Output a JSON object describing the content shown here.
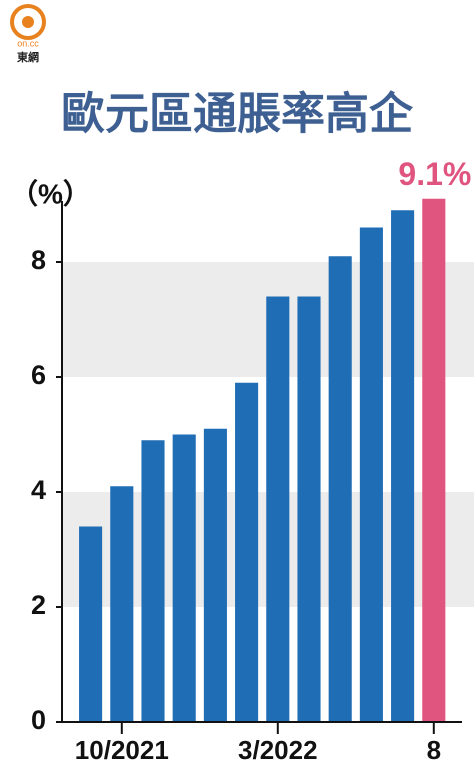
{
  "logo": {
    "brand": "on.cc",
    "name": "東網"
  },
  "chart_data": {
    "type": "bar",
    "title": "歐元區通脹率高企",
    "y_label": "（%）",
    "categories": [
      null,
      "10/2021",
      null,
      null,
      null,
      null,
      "3/2022",
      null,
      null,
      null,
      null,
      "8"
    ],
    "values": [
      3.4,
      4.1,
      4.9,
      5.0,
      5.1,
      5.9,
      7.4,
      7.4,
      8.1,
      8.6,
      8.9,
      9.1
    ],
    "value_labels": [
      null,
      null,
      null,
      null,
      null,
      null,
      null,
      null,
      null,
      null,
      null,
      "9.1%"
    ],
    "colors": [
      "#1f6db5",
      "#1f6db5",
      "#1f6db5",
      "#1f6db5",
      "#1f6db5",
      "#1f6db5",
      "#1f6db5",
      "#1f6db5",
      "#1f6db5",
      "#1f6db5",
      "#1f6db5",
      "#e0557f"
    ],
    "ylim": [
      0,
      9.2
    ],
    "yticks": [
      0,
      2,
      4,
      6,
      8
    ],
    "grid": true
  }
}
